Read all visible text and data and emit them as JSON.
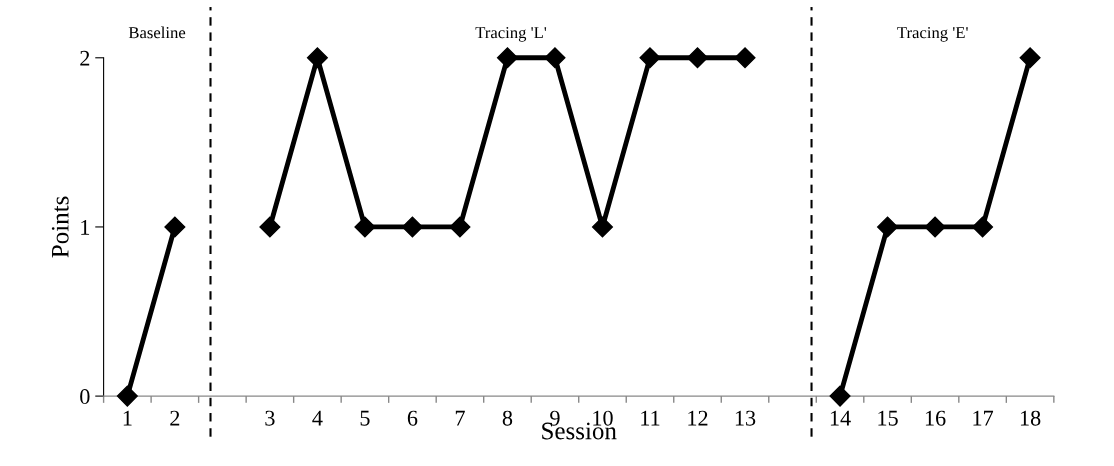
{
  "chart_data": {
    "type": "line",
    "xlabel": "Session",
    "ylabel": "Points",
    "categories": [
      "1",
      "2",
      null,
      "3",
      "4",
      "5",
      "6",
      "7",
      "8",
      "9",
      "10",
      "11",
      "12",
      "13",
      null,
      "14",
      "15",
      "16",
      "17",
      "18"
    ],
    "series": [
      {
        "color": "#000000",
        "values": [
          0,
          1,
          null,
          1,
          2,
          1,
          1,
          1,
          2,
          2,
          1,
          2,
          2,
          2,
          null,
          0,
          1,
          1,
          1,
          2
        ]
      }
    ],
    "ylim": [
      0,
      2
    ],
    "yticks": [
      0,
      1,
      2
    ],
    "grid": false,
    "legend": false,
    "marker": "diamond",
    "line_style": "solid",
    "annotations": [
      "Baseline",
      "Tracing 'L'",
      "Tracing 'E'"
    ]
  }
}
